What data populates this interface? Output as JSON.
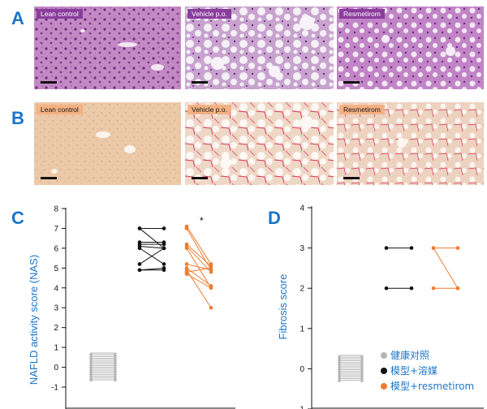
{
  "figure": {
    "panel_labels": {
      "a": "A",
      "b": "B",
      "c": "C",
      "d": "D"
    },
    "he_row": [
      "Lean control",
      "Vehicle p.o.",
      "Resmetirom"
    ],
    "sr_row": [
      "Lean control",
      "Vehicle p.o.",
      "Resmetirom"
    ],
    "colors": {
      "accent": "#1a75c9",
      "lean": "#b4b4b4",
      "vehicle": "#111111",
      "resmetirom": "#ed7d31",
      "he_tag": "#8a3d9c",
      "sr_tag": "#f4b183"
    }
  },
  "chart_data": [
    {
      "type": "scatter",
      "ylabel": "NAFLD activity score (NAS)",
      "ylim": [
        -1,
        8
      ],
      "yticks": [
        "-1",
        "0",
        "1",
        "2",
        "3",
        "4",
        "5",
        "6",
        "7",
        "8"
      ],
      "significance": "*",
      "series": [
        {
          "values_lean": [
            0,
            0,
            0,
            0,
            0,
            0,
            0,
            0,
            0,
            0,
            0,
            0,
            0,
            0,
            0,
            0
          ]
        },
        {
          "pairs_vehicle": [
            [
              7,
              7
            ],
            [
              7,
              6
            ],
            [
              6.3,
              6.3
            ],
            [
              6.2,
              6.2
            ],
            [
              6.1,
              6
            ],
            [
              6,
              5.2
            ],
            [
              5.2,
              6
            ],
            [
              4.9,
              4.9
            ],
            [
              4.9,
              5
            ]
          ]
        },
        {
          "pairs_resmetirom": [
            [
              7.1,
              5.2
            ],
            [
              7,
              4.9
            ],
            [
              6.2,
              5.1
            ],
            [
              6.1,
              4.8
            ],
            [
              6,
              4
            ],
            [
              5.2,
              4.9
            ],
            [
              5,
              4.1
            ],
            [
              4.9,
              3
            ],
            [
              4.8,
              5
            ],
            [
              4.7,
              4
            ]
          ]
        }
      ]
    },
    {
      "type": "scatter",
      "ylabel": "Fibrosis score",
      "ylim": [
        -1,
        4
      ],
      "yticks": [
        "-1",
        "0",
        "1",
        "2",
        "3",
        "4"
      ],
      "legend": [
        "健康对照",
        "模型+溶媒",
        "模型+resmetirom"
      ],
      "series": [
        {
          "values_lean": [
            0,
            0,
            0,
            0,
            0,
            0,
            0,
            0,
            0,
            0,
            0,
            0,
            0,
            0,
            0
          ]
        },
        {
          "pairs_vehicle": [
            [
              3,
              3
            ],
            [
              2,
              2
            ]
          ]
        },
        {
          "pairs_resmetirom": [
            [
              3,
              3
            ],
            [
              3,
              2
            ],
            [
              2,
              2
            ]
          ]
        }
      ]
    }
  ]
}
